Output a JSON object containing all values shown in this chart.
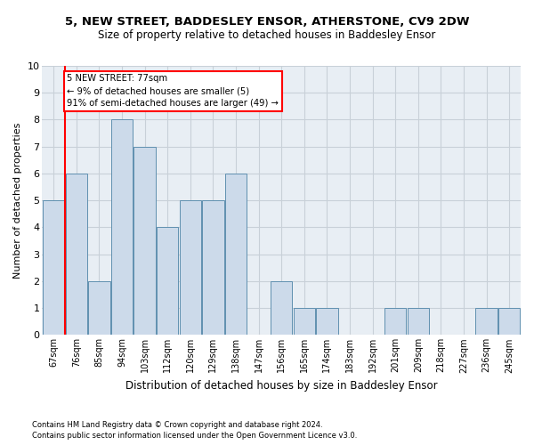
{
  "title1": "5, NEW STREET, BADDESLEY ENSOR, ATHERSTONE, CV9 2DW",
  "title2": "Size of property relative to detached houses in Baddesley Ensor",
  "xlabel": "Distribution of detached houses by size in Baddesley Ensor",
  "ylabel": "Number of detached properties",
  "categories": [
    "67sqm",
    "76sqm",
    "85sqm",
    "94sqm",
    "103sqm",
    "112sqm",
    "120sqm",
    "129sqm",
    "138sqm",
    "147sqm",
    "156sqm",
    "165sqm",
    "174sqm",
    "183sqm",
    "192sqm",
    "201sqm",
    "209sqm",
    "218sqm",
    "227sqm",
    "236sqm",
    "245sqm"
  ],
  "values": [
    5,
    6,
    2,
    8,
    7,
    4,
    5,
    5,
    6,
    0,
    2,
    1,
    1,
    0,
    0,
    1,
    1,
    0,
    0,
    1,
    1
  ],
  "bar_color": "#ccdaea",
  "bar_edge_color": "#6090b0",
  "annotation_text": "5 NEW STREET: 77sqm\n← 9% of detached houses are smaller (5)\n91% of semi-detached houses are larger (49) →",
  "annotation_box_color": "white",
  "annotation_box_edge": "red",
  "vline_color": "red",
  "vline_x_idx": 1,
  "ylim": [
    0,
    10
  ],
  "yticks": [
    0,
    1,
    2,
    3,
    4,
    5,
    6,
    7,
    8,
    9,
    10
  ],
  "footnote1": "Contains HM Land Registry data © Crown copyright and database right 2024.",
  "footnote2": "Contains public sector information licensed under the Open Government Licence v3.0.",
  "grid_color": "#c8d0d8",
  "background_color": "#e8eef4"
}
